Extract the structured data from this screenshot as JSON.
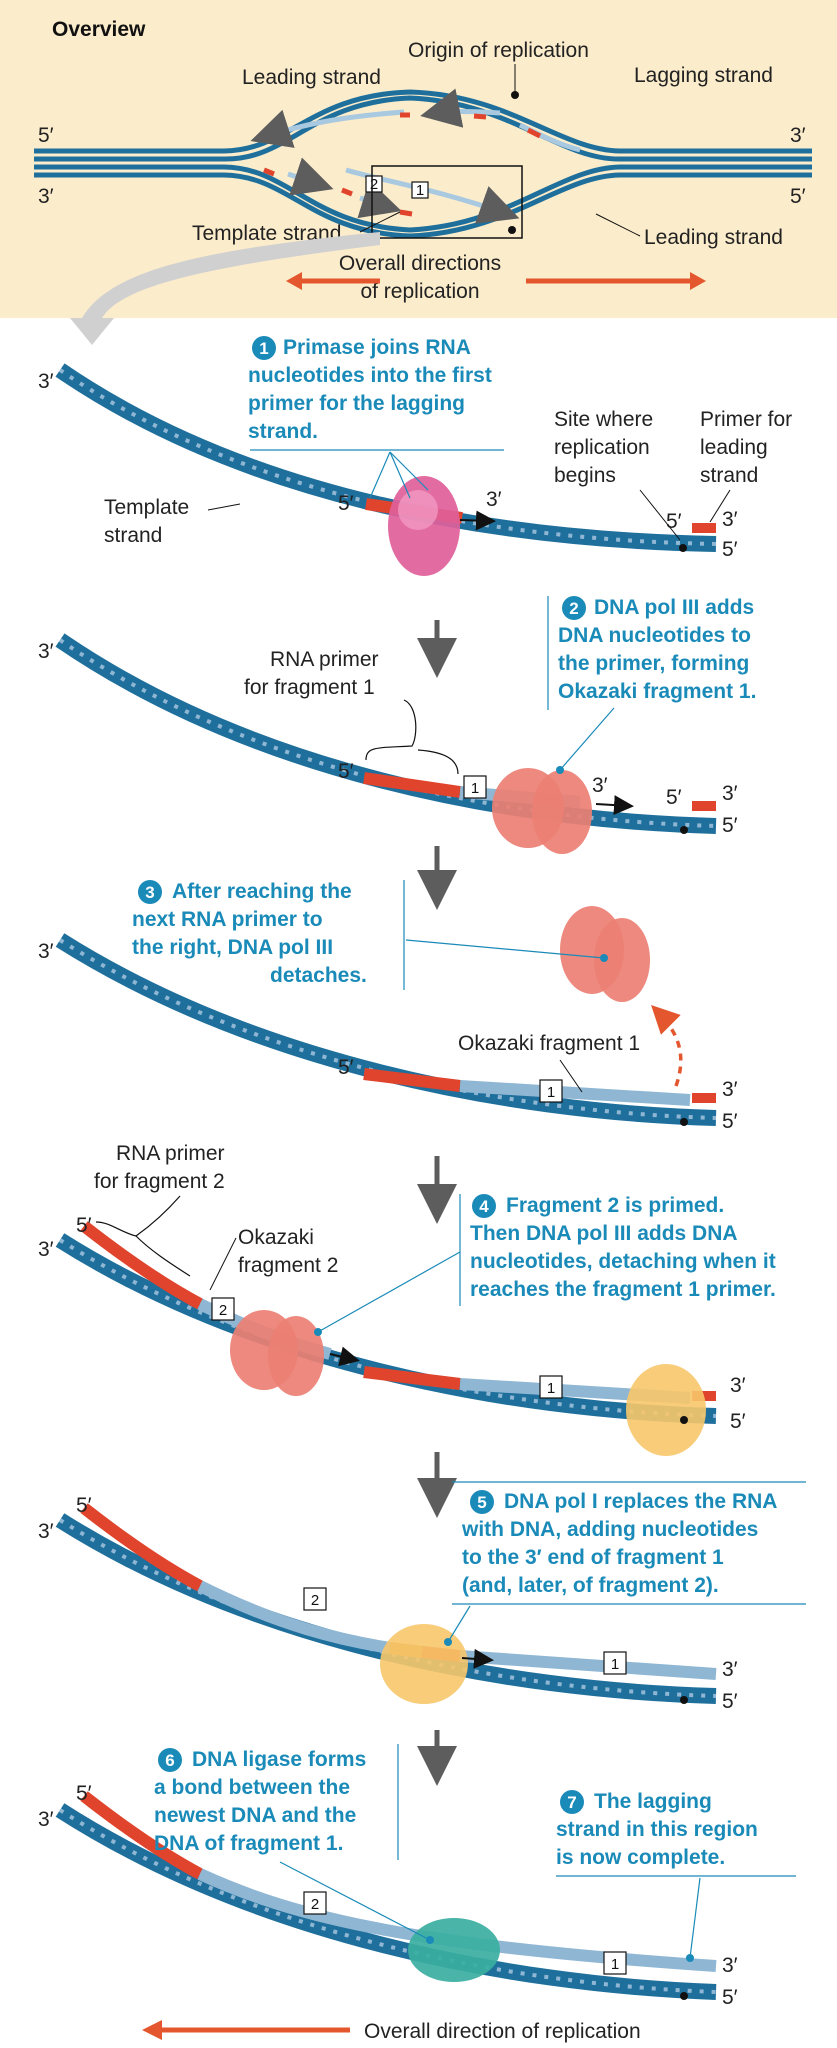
{
  "overview": {
    "title": "Overview",
    "origin": "Origin of replication",
    "leading_top": "Leading strand",
    "lagging_top": "Lagging strand",
    "template": "Template strand",
    "leading_bottom": "Leading strand",
    "directions_line1": "Overall directions",
    "directions_line2": "of replication",
    "end_5_left": "5′",
    "end_3_left": "3′",
    "end_3_right": "3′",
    "end_5_right": "5′",
    "frag1": "1",
    "frag2": "2"
  },
  "labels": {
    "three_prime": "3′",
    "five_prime": "5′",
    "frag1": "1",
    "frag2": "2"
  },
  "panel1": {
    "num": "1",
    "text": [
      "Primase joins RNA",
      "nucleotides into the first",
      "primer for the lagging",
      "strand."
    ],
    "template": [
      "Template",
      "strand"
    ],
    "site": [
      "Site where",
      "replication",
      "begins"
    ],
    "primer": [
      "Primer for",
      "leading",
      "strand"
    ]
  },
  "panel2": {
    "num": "2",
    "text": [
      "DNA pol III adds",
      "DNA nucleotides to",
      "the primer, forming",
      "Okazaki fragment 1."
    ],
    "rna": [
      "RNA primer",
      "for fragment 1"
    ]
  },
  "panel3": {
    "num": "3",
    "text": [
      "After reaching the",
      "next RNA primer to",
      "the right, DNA pol III",
      "detaches."
    ],
    "okazaki": "Okazaki fragment 1"
  },
  "panel4": {
    "num": "4",
    "text": [
      "Fragment 2 is primed.",
      "Then DNA pol III adds DNA",
      "nucleotides, detaching when it",
      "reaches the fragment 1 primer."
    ],
    "rna": [
      "RNA primer",
      "for fragment 2"
    ],
    "okazaki": [
      "Okazaki",
      "fragment 2"
    ]
  },
  "panel5": {
    "num": "5",
    "text": [
      "DNA pol I replaces the RNA",
      "with DNA, adding nucleotides",
      "to the 3′ end of fragment 1",
      "(and, later, of fragment 2)."
    ]
  },
  "panel6": {
    "num": "6",
    "text": [
      "DNA ligase forms",
      "a bond between the",
      "newest DNA and the",
      "DNA of fragment 1."
    ]
  },
  "panel7": {
    "num": "7",
    "text": [
      "The lagging",
      "strand in this region",
      "is now complete."
    ]
  },
  "footer": {
    "text": "Overall direction of replication"
  },
  "colors": {
    "overview_bg": "#fbeccb",
    "strand_blue": "#1f6f9c",
    "light_blue": "#a9c9e0",
    "rna_red": "#e0442c",
    "accent_blue": "#1a8ab8",
    "arrow_orange": "#e4572e",
    "primase_pink": "#e0609a",
    "pol3_salmon": "#ec7f73",
    "pol1_yellow": "#f7c66a",
    "ligase_teal": "#3aaea0"
  }
}
